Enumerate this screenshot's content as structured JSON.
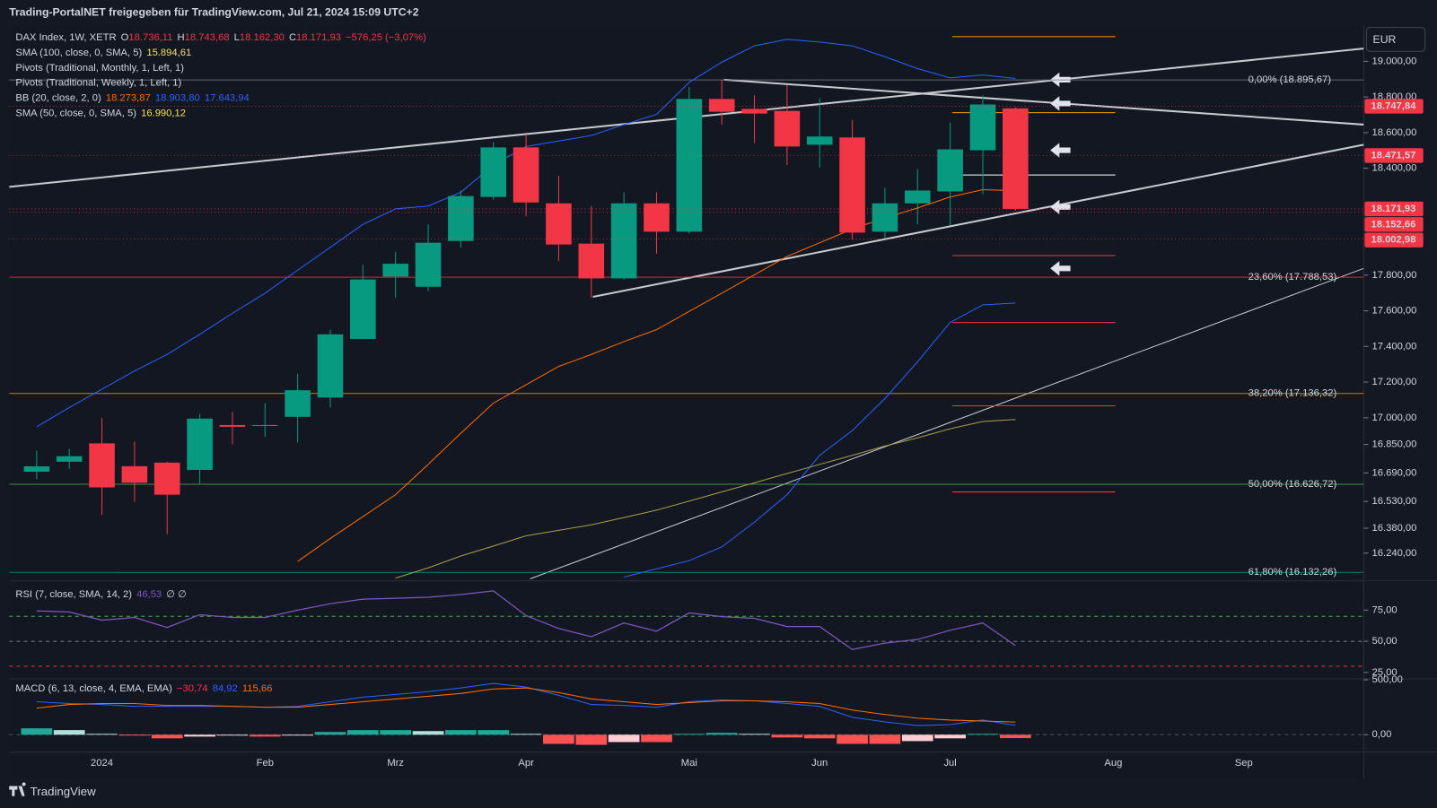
{
  "header": "Trading-PortalNET freigegeben für TradingView.com, Jul 21, 2024 15:09 UTC+2",
  "currency": "EUR",
  "brand": "TradingView",
  "chart_data": [
    {
      "type": "candlestick",
      "legend": [
        [
          {
            "text": "DAX Index, 1W, XETR",
            "color": "#d1d4dc"
          },
          {
            "text": "O",
            "color": "#d1d4dc"
          },
          {
            "text": "18.736,11",
            "color": "#f23645"
          },
          {
            "text": "H",
            "color": "#d1d4dc"
          },
          {
            "text": "18.743,68",
            "color": "#f23645"
          },
          {
            "text": "L",
            "color": "#d1d4dc"
          },
          {
            "text": "18.162,30",
            "color": "#f23645"
          },
          {
            "text": "C",
            "color": "#d1d4dc"
          },
          {
            "text": "18.171,93",
            "color": "#f23645"
          },
          {
            "text": "−576,25 (−3,07%)",
            "color": "#f23645"
          }
        ],
        [
          {
            "text": "SMA (100, close, 0, SMA, 5)",
            "color": "#d1d4dc"
          },
          {
            "text": "15.894,61",
            "color": "#f5e05b"
          }
        ],
        [
          {
            "text": "Pivots (Traditional, Monthly, 1, Left, 1)",
            "color": "#d1d4dc"
          }
        ],
        [
          {
            "text": "Pivots (Traditional, Weekly, 1, Left, 1)",
            "color": "#d1d4dc"
          }
        ],
        [
          {
            "text": "BB (20, close, 2, 0)",
            "color": "#d1d4dc"
          },
          {
            "text": "18.273,87",
            "color": "#ff6d00"
          },
          {
            "text": "18.903,80",
            "color": "#2962ff"
          },
          {
            "text": "17.643,94",
            "color": "#2962ff"
          }
        ],
        [
          {
            "text": "SMA (50, close, 0, SMA, 5)",
            "color": "#d1d4dc"
          },
          {
            "text": "16.990,12",
            "color": "#f5e05b"
          }
        ]
      ],
      "categories": [
        null,
        null,
        "2024",
        null,
        null,
        null,
        null,
        "Feb",
        null,
        null,
        null,
        "Mrz",
        null,
        null,
        null,
        "Apr",
        null,
        null,
        null,
        null,
        "Mai",
        null,
        null,
        null,
        "Jun",
        null,
        null,
        null,
        "Jul",
        null,
        null,
        null,
        null,
        "Aug",
        null,
        null,
        null,
        "Sep"
      ],
      "open": [
        16697,
        16753,
        16856,
        16728,
        16748,
        16707,
        16959,
        16954,
        17005,
        17113,
        17442,
        17792,
        17735,
        17992,
        18239,
        18517,
        18203,
        17977,
        17782,
        18203,
        18044,
        18789,
        18733,
        18722,
        18532,
        18573,
        18044,
        18203,
        18270,
        18501,
        18736.11,
        null,
        null,
        null,
        null,
        null,
        null,
        null
      ],
      "high": [
        16815,
        16825,
        17000,
        16866,
        16753,
        17021,
        17031,
        17082,
        17247,
        17494,
        17859,
        17931,
        18085,
        18275,
        18548,
        18584,
        18357,
        18188,
        18265,
        18265,
        18856,
        18897,
        18810,
        18866,
        18794,
        18671,
        18290,
        18393,
        18656,
        18810,
        18743.68,
        null,
        null,
        null,
        null,
        null,
        null,
        null
      ],
      "low": [
        16655,
        16712,
        16455,
        16527,
        16347,
        16630,
        16851,
        16892,
        16861,
        17057,
        17442,
        17674,
        17710,
        17956,
        18224,
        18131,
        17879,
        17674,
        17776,
        17920,
        18034,
        18645,
        18542,
        18419,
        18404,
        17998,
        18008,
        18085,
        18080,
        18255,
        18162.3,
        null,
        null,
        null,
        null,
        null,
        null,
        null
      ],
      "close": [
        16727,
        16784,
        16609,
        16635,
        16568,
        16995,
        16949,
        16959,
        17154,
        17468,
        17776,
        17864,
        17982,
        18244,
        18517,
        18208,
        17972,
        17782,
        18203,
        18044,
        18789,
        18717,
        18707,
        18522,
        18578,
        18039,
        18203,
        18275,
        18506,
        18758,
        18171.93,
        null,
        null,
        null,
        null,
        null,
        null,
        null
      ],
      "up_color": "#089981",
      "down_color": "#f23645",
      "series": [
        {
          "color": "#2962ff",
          "values": [
            16949,
            17057,
            17160,
            17262,
            17355,
            17468,
            17586,
            17699,
            17828,
            17956,
            18085,
            18172,
            18188,
            18265,
            18419,
            18522,
            18553,
            18584,
            18645,
            18702,
            18882,
            18995,
            19087,
            19123,
            19108,
            19087,
            19026,
            18959,
            18907,
            18923,
            18903.8,
            null,
            null,
            null,
            null,
            null,
            null,
            null
          ]
        },
        {
          "color": "#2962ff",
          "values": [
            null,
            null,
            null,
            null,
            null,
            null,
            null,
            null,
            null,
            null,
            null,
            null,
            null,
            null,
            null,
            null,
            null,
            null,
            16106,
            16152,
            16198,
            16275,
            16414,
            16568,
            16789,
            16928,
            17108,
            17314,
            17535,
            17633,
            17643.94,
            null,
            null,
            null,
            null,
            null,
            null,
            null
          ]
        },
        {
          "color": "#ff6d00",
          "values": [
            null,
            null,
            null,
            null,
            null,
            null,
            null,
            null,
            16193,
            16322,
            16445,
            16568,
            16738,
            16913,
            17082,
            17185,
            17288,
            17355,
            17427,
            17494,
            17597,
            17699,
            17802,
            17905,
            17982,
            18059,
            18121,
            18177,
            18239,
            18280,
            18273.87,
            null,
            null,
            null,
            null,
            null,
            null,
            null
          ]
        },
        {
          "color": "#a5a14a",
          "values": [
            null,
            null,
            null,
            null,
            null,
            null,
            null,
            null,
            null,
            null,
            null,
            16100,
            16157,
            16224,
            16280,
            16337,
            16368,
            16399,
            16440,
            16481,
            16532,
            16584,
            16635,
            16687,
            16738,
            16789,
            16841,
            16887,
            16938,
            16979,
            16990.12,
            null,
            null,
            null,
            null,
            null,
            null,
            null
          ]
        }
      ],
      "fib": [
        {
          "label": "0,00% (18.895,67)",
          "value": 18895.67,
          "color": "#787b86"
        },
        {
          "label": "23,60% (17.788,53)",
          "value": 17788.53,
          "color": "#f23645"
        },
        {
          "label": "38,20% (17.136,32)",
          "value": 17136.32,
          "color": "#ff9800"
        },
        {
          "label": "50,00% (16.626,72)",
          "value": 16626.72,
          "color": "#4caf50"
        },
        {
          "label": "61,80% (16.132,26)",
          "value": 16132.26,
          "color": "#089981"
        }
      ],
      "price_tags": [
        {
          "value": 18747.84,
          "label": "18.747,84"
        },
        {
          "value": 18471.57,
          "label": "18.471,57"
        },
        {
          "value": 18171.93,
          "label": "18.171,93"
        },
        {
          "value": 18152.66,
          "label": "18.152,66"
        },
        {
          "value": 18002.98,
          "label": "18.002,98"
        }
      ],
      "tag_color": "#f23645",
      "ylim": [
        16095,
        19190
      ],
      "yticks": [
        {
          "value": 19000,
          "label": "19.000,00"
        },
        {
          "value": 18800,
          "label": "18.800,00"
        },
        {
          "value": 18600,
          "label": "18.600,00"
        },
        {
          "value": 18400,
          "label": "18.400,00"
        },
        {
          "value": 17800,
          "label": "17.800,00"
        },
        {
          "value": 17600,
          "label": "17.600,00"
        },
        {
          "value": 17400,
          "label": "17.400,00"
        },
        {
          "value": 17200,
          "label": "17.200,00"
        },
        {
          "value": 17000,
          "label": "17.000,00"
        },
        {
          "value": 16850,
          "label": "16.850,00"
        },
        {
          "value": 16690,
          "label": "16.690,00"
        },
        {
          "value": 16530,
          "label": "16.530,00"
        },
        {
          "value": 16380,
          "label": "16.380,00"
        },
        {
          "value": 16240,
          "label": "16.240,00"
        }
      ]
    },
    {
      "type": "line",
      "legend": [
        [
          {
            "text": "RSI (7, close, SMA, 14, 2)",
            "color": "#d1d4dc"
          },
          {
            "text": "46,53",
            "color": "#7e57c2"
          },
          {
            "text": "∅ ∅",
            "color": "#d1d4dc"
          }
        ]
      ],
      "color": "#7e57c2",
      "values": [
        74.3,
        73.5,
        66.9,
        69.1,
        61.0,
        71.3,
        69.1,
        69.1,
        75.0,
        80.1,
        83.8,
        84.5,
        85.3,
        87.5,
        90.4,
        70.6,
        60.3,
        53.7,
        64.7,
        58.1,
        72.8,
        69.8,
        68.4,
        61.8,
        61.8,
        43.4,
        48.5,
        51.5,
        58.8,
        64.7,
        46.53,
        null,
        null,
        null,
        null,
        null,
        null,
        null
      ],
      "levels": [
        {
          "value": 70,
          "color": "#4caf50"
        },
        {
          "value": 50,
          "color": "#787b86"
        },
        {
          "value": 30,
          "color": "#f23645"
        }
      ],
      "ylim": [
        20.6,
        94.1
      ],
      "yticks": [
        {
          "value": 75,
          "label": "75,00"
        },
        {
          "value": 50,
          "label": "50,00"
        },
        {
          "value": 25,
          "label": "25,00"
        }
      ]
    },
    {
      "type": "macd",
      "legend": [
        [
          {
            "text": "MACD (6, 13, close, 4, EMA, EMA)",
            "color": "#d1d4dc"
          },
          {
            "text": "−30,74",
            "color": "#f23645"
          },
          {
            "text": "84,92",
            "color": "#2962ff"
          },
          {
            "text": "115,66",
            "color": "#ff6d00"
          }
        ]
      ],
      "histogram": [
        58,
        42,
        8,
        -8,
        -33,
        -17,
        -8,
        -17,
        -8,
        25,
        42,
        42,
        33,
        42,
        42,
        8,
        -83,
        -92,
        -67,
        -67,
        8,
        17,
        8,
        -25,
        -33,
        -83,
        -83,
        -58,
        -33,
        8,
        -30.74,
        null,
        null,
        null,
        null,
        null,
        null,
        null
      ],
      "hist_colors": {
        "up_rising": "#26a69a",
        "up_falling": "#b2dfdb",
        "down_falling": "#ff5252",
        "down_rising": "#ffcdd2"
      },
      "series": [
        {
          "color": "#2962ff",
          "values": [
            300,
            283,
            275,
            258,
            258,
            258,
            258,
            250,
            258,
            300,
            342,
            367,
            392,
            425,
            467,
            433,
            358,
            275,
            267,
            250,
            300,
            317,
            308,
            283,
            258,
            158,
            117,
            83,
            92,
            133,
            84.92,
            null,
            null,
            null,
            null,
            null,
            null,
            null
          ]
        },
        {
          "color": "#ff6d00",
          "values": [
            242,
            275,
            283,
            283,
            267,
            267,
            258,
            250,
            250,
            275,
            300,
            325,
            350,
            375,
            417,
            425,
            383,
            325,
            300,
            275,
            292,
            308,
            308,
            300,
            283,
            225,
            183,
            150,
            133,
            125,
            115.66,
            null,
            null,
            null,
            null,
            null,
            null,
            null
          ]
        }
      ],
      "ylim": [
        -150,
        500
      ],
      "yticks": [
        {
          "value": 500,
          "label": "500,00"
        },
        {
          "value": 0,
          "label": "0,00"
        }
      ]
    }
  ]
}
